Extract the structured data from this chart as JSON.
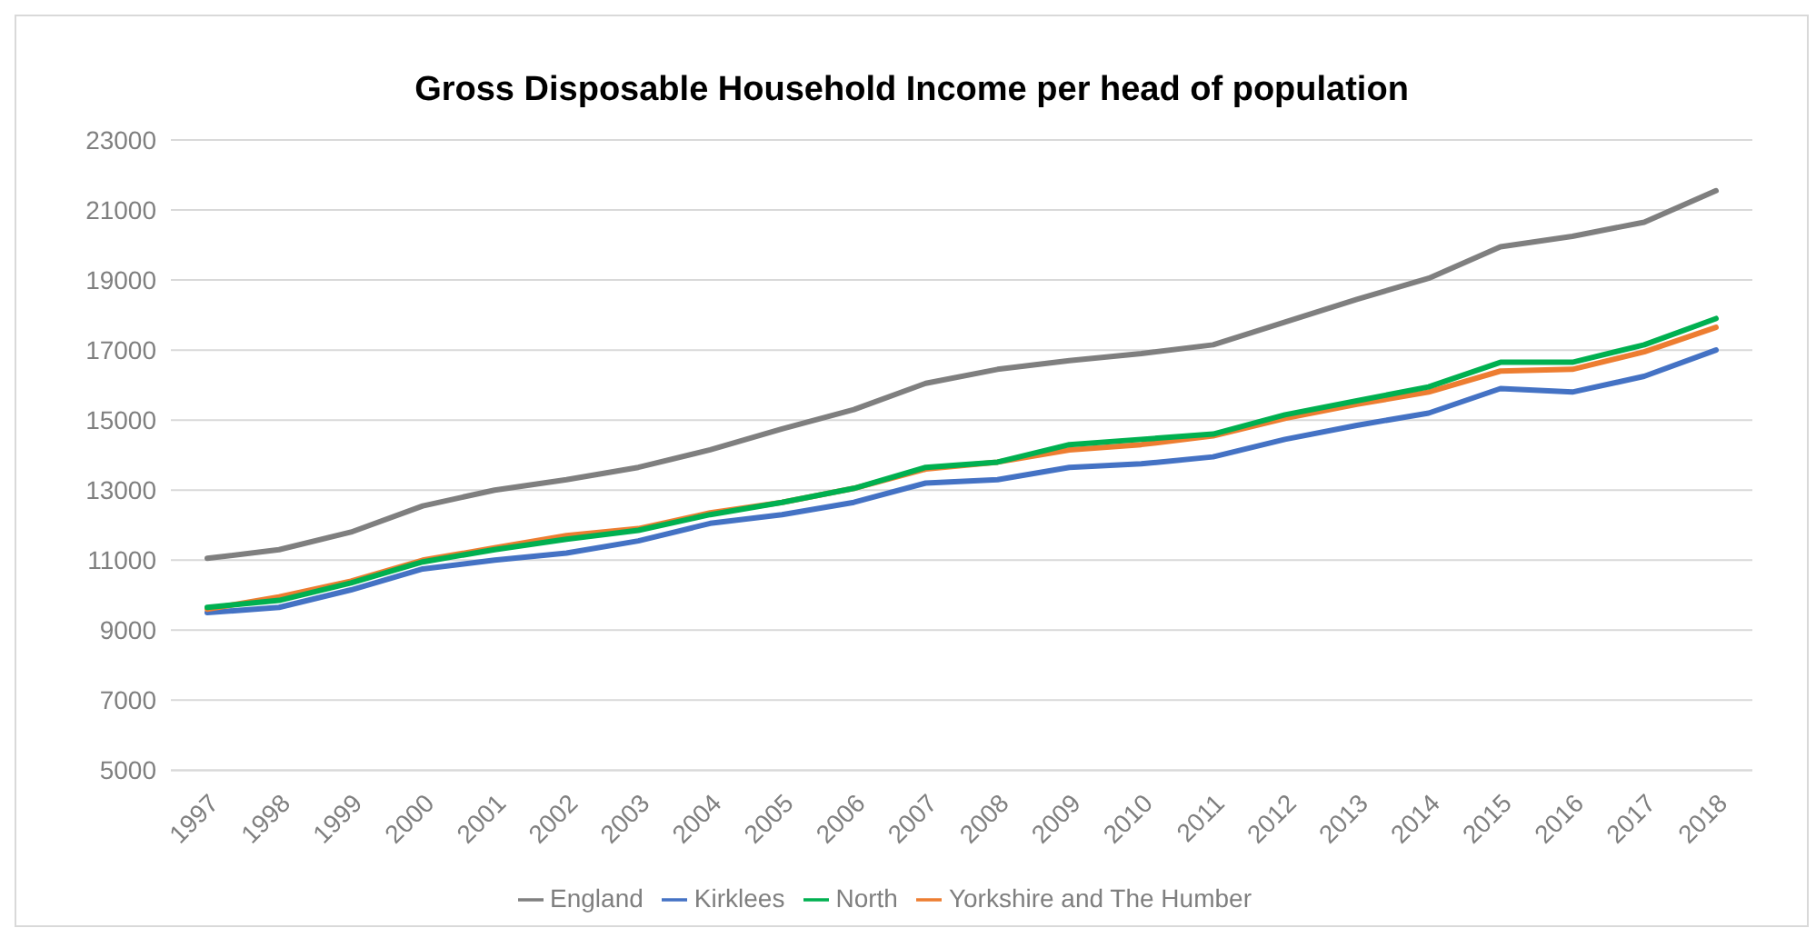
{
  "chart_data": {
    "type": "line",
    "title": "Gross Disposable Household Income per head of population",
    "categories": [
      "1997",
      "1998",
      "1999",
      "2000",
      "2001",
      "2002",
      "2003",
      "2004",
      "2005",
      "2006",
      "2007",
      "2008",
      "2009",
      "2010",
      "2011",
      "2012",
      "2013",
      "2014",
      "2015",
      "2016",
      "2017",
      "2018"
    ],
    "series": [
      {
        "name": "Kirklees",
        "color": "#4472c4",
        "values": [
          9500,
          9650,
          10150,
          10750,
          11000,
          11200,
          11550,
          12050,
          12300,
          12650,
          13200,
          13300,
          13650,
          13750,
          13950,
          14450,
          14850,
          15200,
          15900,
          15800,
          16250,
          17000
        ]
      },
      {
        "name": "Yorkshire and The Humber",
        "color": "#ed7d31",
        "values": [
          9600,
          9950,
          10400,
          11000,
          11350,
          11700,
          11900,
          12350,
          12650,
          13050,
          13600,
          13800,
          14150,
          14300,
          14550,
          15050,
          15450,
          15800,
          16400,
          16450,
          16950,
          17650
        ]
      },
      {
        "name": "North",
        "color": "#00b050",
        "values": [
          9650,
          9850,
          10350,
          10950,
          11300,
          11600,
          11850,
          12300,
          12650,
          13050,
          13650,
          13800,
          14300,
          14450,
          14600,
          15150,
          15550,
          15950,
          16650,
          16650,
          17150,
          17900
        ]
      },
      {
        "name": "England",
        "color": "#7f7f7f",
        "values": [
          11050,
          11300,
          11800,
          12550,
          13000,
          13300,
          13650,
          14150,
          14750,
          15300,
          16050,
          16450,
          16700,
          16900,
          17150,
          17800,
          18450,
          19050,
          19950,
          20250,
          20650,
          21550
        ]
      }
    ],
    "ylim": [
      5000,
      23000
    ],
    "yticks": [
      5000,
      7000,
      9000,
      11000,
      13000,
      15000,
      17000,
      19000,
      21000,
      23000
    ],
    "grid": "y",
    "legend": "bottom",
    "marker": "none",
    "line_style": "solid"
  }
}
